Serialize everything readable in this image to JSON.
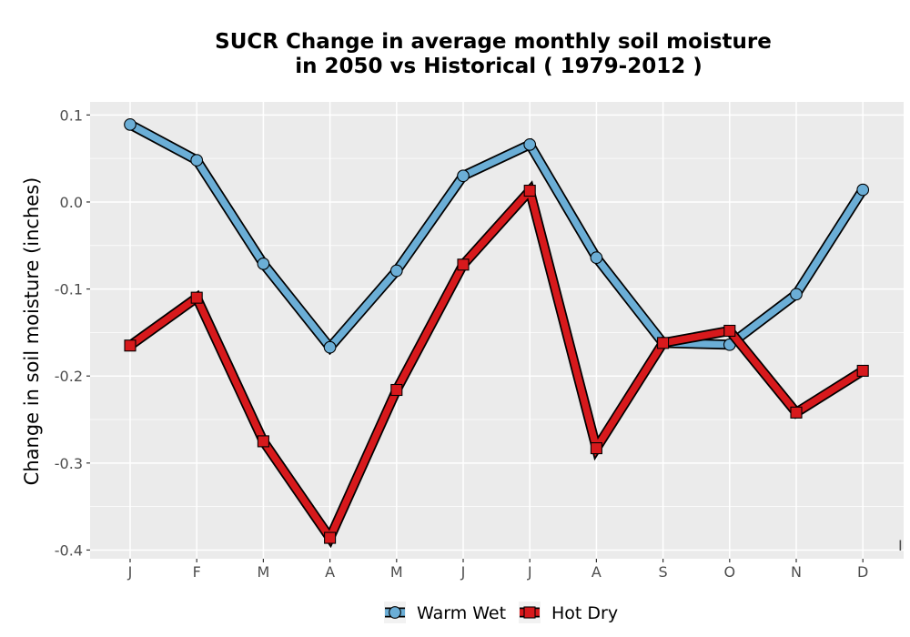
{
  "chart_data": {
    "type": "line",
    "title_line1": "SUCR  Change in average monthly soil moisture",
    "title_line2": "in 2050 vs Historical ( 1979-2012 )",
    "ylabel": "Change in soil moisture (inches)",
    "xlabel": "",
    "categories": [
      "J",
      "F",
      "M",
      "A",
      "M",
      "J",
      "J",
      "A",
      "S",
      "O",
      "N",
      "D"
    ],
    "yticks": [
      0.1,
      0.0,
      -0.1,
      -0.2,
      -0.3,
      -0.4
    ],
    "ytick_labels": [
      "0.1",
      "0.0",
      "-0.1",
      "-0.2",
      "-0.3",
      "-0.4"
    ],
    "ylim": [
      -0.41,
      0.115
    ],
    "grid": true,
    "legend_position": "bottom",
    "stray_mark": "I",
    "series": [
      {
        "name": "Warm Wet",
        "color": "#6baed6",
        "marker": "circle",
        "values": [
          0.089,
          0.048,
          -0.071,
          -0.167,
          -0.079,
          0.03,
          0.066,
          -0.064,
          -0.162,
          -0.164,
          -0.106,
          0.014
        ]
      },
      {
        "name": "Hot Dry",
        "color": "#d7191c",
        "marker": "square",
        "values": [
          -0.165,
          -0.11,
          -0.275,
          -0.386,
          -0.216,
          -0.072,
          0.013,
          -0.283,
          -0.162,
          -0.148,
          -0.242,
          -0.194
        ]
      }
    ]
  }
}
